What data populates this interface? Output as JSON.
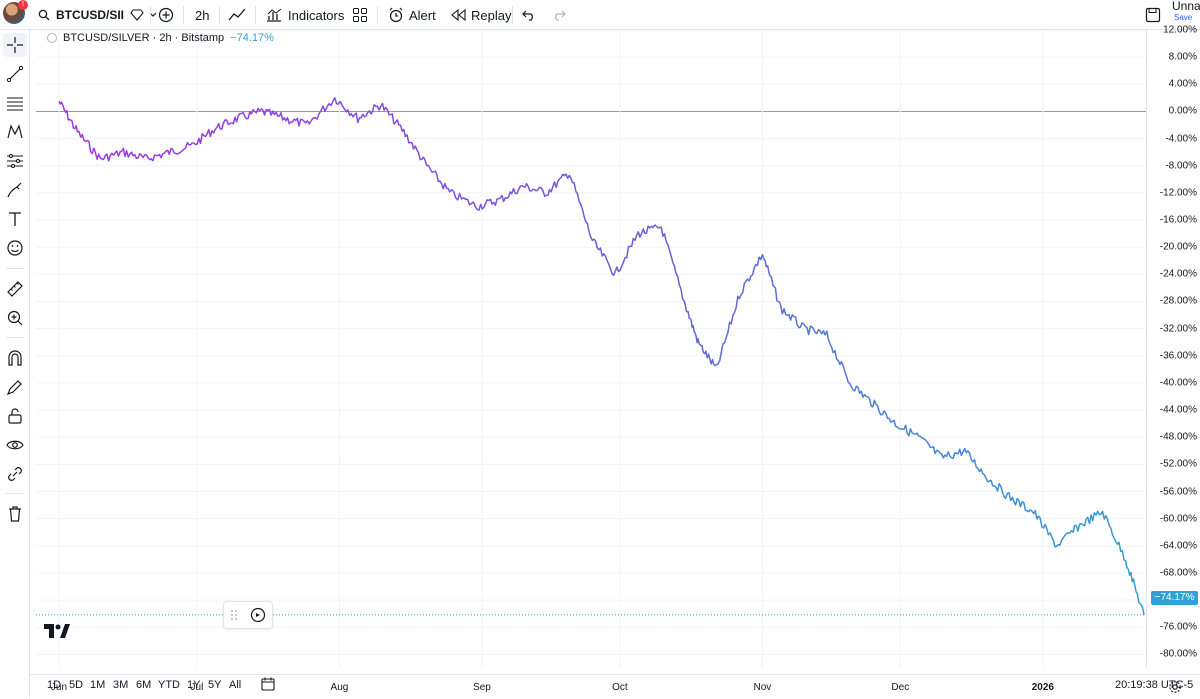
{
  "toolbar": {
    "symbol": "BTCUSD/SII",
    "interval": "2h",
    "indicators_label": "Indicators",
    "alert_label": "Alert",
    "replay_label": "Replay",
    "layout_name": "Unna",
    "layout_status": "Save"
  },
  "legend": {
    "title": "BTCUSD/SILVER · 2h · Bitstamp",
    "change": "−74.17%"
  },
  "price_tag": "−74.17%",
  "time_ranges": [
    "1D",
    "5D",
    "1M",
    "3M",
    "6M",
    "YTD",
    "1Y",
    "5Y",
    "All"
  ],
  "clock": "20:19:38 UTC-5",
  "colors": {
    "line_start": "#a236e6",
    "line_mid": "#6f5bd6",
    "line_end": "#2ea2d4",
    "accent": "#2962ff"
  },
  "chart_data": {
    "type": "line",
    "title": "BTCUSD/SILVER · 2h · Bitstamp",
    "x_tick_labels": [
      "Jun",
      "Jul",
      "Aug",
      "Sep",
      "Oct",
      "Nov",
      "Dec",
      "2026"
    ],
    "y_tick_labels": [
      "12.00%",
      "8.00%",
      "4.00%",
      "0.00%",
      "-4.00%",
      "-8.00%",
      "-12.00%",
      "-16.00%",
      "-20.00%",
      "-24.00%",
      "-28.00%",
      "-32.00%",
      "-36.00%",
      "-40.00%",
      "-44.00%",
      "-48.00%",
      "-52.00%",
      "-56.00%",
      "-60.00%",
      "-64.00%",
      "-68.00%",
      "-72.00%",
      "-76.00%",
      "-80.00%"
    ],
    "ylim": [
      -82,
      12
    ],
    "unit": "%",
    "series": [
      {
        "x": [
          "2025-06-01",
          "2025-06-05",
          "2025-06-10",
          "2025-06-15",
          "2025-06-20",
          "2025-06-25",
          "2025-06-30",
          "2025-07-05",
          "2025-07-10",
          "2025-07-15",
          "2025-07-20",
          "2025-07-25",
          "2025-07-31",
          "2025-08-05",
          "2025-08-10",
          "2025-08-15",
          "2025-08-20",
          "2025-08-25",
          "2025-08-31",
          "2025-09-05",
          "2025-09-10",
          "2025-09-15",
          "2025-09-20",
          "2025-09-25",
          "2025-09-30",
          "2025-10-05",
          "2025-10-10",
          "2025-10-15",
          "2025-10-18",
          "2025-10-22",
          "2025-10-27",
          "2025-11-01",
          "2025-11-05",
          "2025-11-10",
          "2025-11-15",
          "2025-11-20",
          "2025-11-25",
          "2025-11-30",
          "2025-12-05",
          "2025-12-10",
          "2025-12-15",
          "2025-12-20",
          "2025-12-25",
          "2025-12-30",
          "2026-01-04",
          "2026-01-09",
          "2026-01-14",
          "2026-01-19",
          "2026-01-23"
        ],
        "y": [
          1.5,
          -3,
          -7,
          -6,
          -7,
          -6,
          -5,
          -2.5,
          -1,
          0,
          -1,
          -2,
          2,
          -1,
          1,
          -3,
          -8,
          -12,
          -14,
          -13,
          -11,
          -12,
          -9,
          -19,
          -24,
          -18,
          -17,
          -28,
          -34,
          -38,
          -27,
          -21,
          -29,
          -32,
          -33,
          -40,
          -43,
          -46,
          -48,
          -51,
          -50,
          -54,
          -57,
          -59,
          -64,
          -61,
          -59,
          -66,
          -74.17
        ]
      }
    ]
  }
}
